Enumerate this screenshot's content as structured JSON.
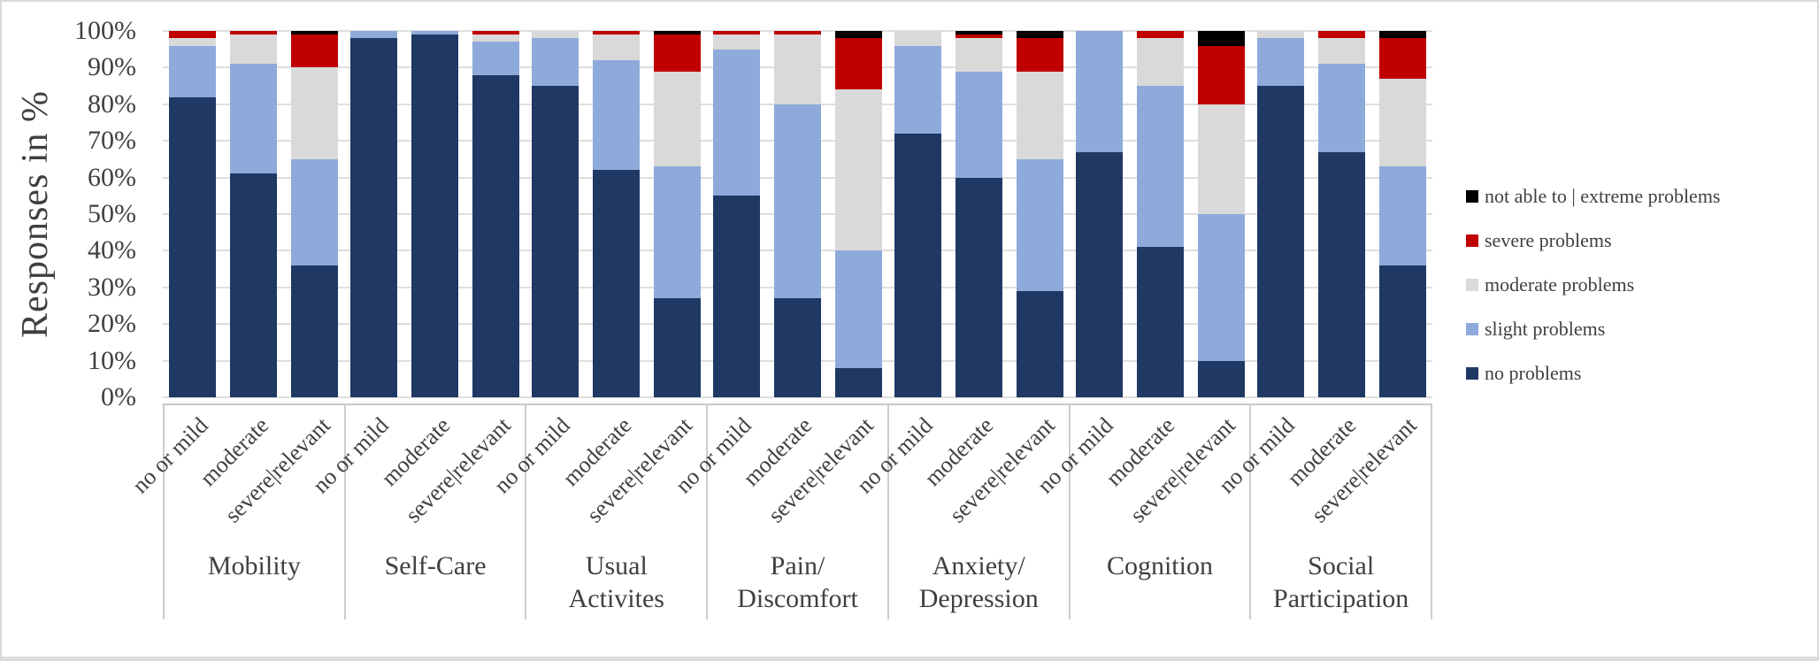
{
  "chart_data": {
    "type": "bar",
    "variant": "stacked-100-percent",
    "ylabel": "Responses in %",
    "ylim": [
      0,
      100
    ],
    "grid": "horizontal",
    "y_ticks": [
      "100%",
      "90%",
      "80%",
      "70%",
      "60%",
      "50%",
      "40%",
      "30%",
      "20%",
      "10%",
      "0%"
    ],
    "bar_categories": [
      "no or mild",
      "moderate",
      "severe|relevant"
    ],
    "series_order_bottom_to_top": [
      "no problems",
      "slight problems",
      "moderate problems",
      "severe problems",
      "not able to | extreme problems"
    ],
    "series_colors": {
      "no problems": "#1F3864",
      "slight problems": "#8EAADB",
      "moderate problems": "#D9D9D9",
      "severe problems": "#C00000",
      "not able to | extreme problems": "#000000"
    },
    "groups": [
      {
        "label_lines": [
          "Mobility"
        ],
        "bars": [
          {
            "category": "no or mild",
            "values": [
              82,
              14,
              2,
              2,
              0
            ]
          },
          {
            "category": "moderate",
            "values": [
              61,
              30,
              8,
              1,
              0
            ]
          },
          {
            "category": "severe|relevant",
            "values": [
              36,
              29,
              25,
              9,
              1
            ]
          }
        ]
      },
      {
        "label_lines": [
          "Self-Care"
        ],
        "bars": [
          {
            "category": "no or mild",
            "values": [
              98,
              2,
              0,
              0,
              0
            ]
          },
          {
            "category": "moderate",
            "values": [
              99,
              1,
              0,
              0,
              0
            ]
          },
          {
            "category": "severe|relevant",
            "values": [
              88,
              9,
              2,
              1,
              0
            ]
          }
        ]
      },
      {
        "label_lines": [
          "Usual",
          "Activites"
        ],
        "bars": [
          {
            "category": "no or mild",
            "values": [
              85,
              13,
              2,
              0,
              0
            ]
          },
          {
            "category": "moderate",
            "values": [
              62,
              30,
              7,
              1,
              0
            ]
          },
          {
            "category": "severe|relevant",
            "values": [
              27,
              36,
              26,
              10,
              1
            ]
          }
        ]
      },
      {
        "label_lines": [
          "Pain/",
          "Discomfort"
        ],
        "bars": [
          {
            "category": "no or mild",
            "values": [
              55,
              40,
              4,
              1,
              0
            ]
          },
          {
            "category": "moderate",
            "values": [
              27,
              53,
              19,
              1,
              0
            ]
          },
          {
            "category": "severe|relevant",
            "values": [
              8,
              32,
              44,
              14,
              2
            ]
          }
        ]
      },
      {
        "label_lines": [
          "Anxiety/",
          "Depression"
        ],
        "bars": [
          {
            "category": "no or mild",
            "values": [
              72,
              24,
              4,
              0,
              0
            ]
          },
          {
            "category": "moderate",
            "values": [
              60,
              29,
              9,
              1,
              1
            ]
          },
          {
            "category": "severe|relevant",
            "values": [
              29,
              36,
              24,
              9,
              2
            ]
          }
        ]
      },
      {
        "label_lines": [
          "Cognition"
        ],
        "bars": [
          {
            "category": "no or mild",
            "values": [
              67,
              33,
              0,
              0,
              0
            ]
          },
          {
            "category": "moderate",
            "values": [
              41,
              44,
              13,
              2,
              0
            ]
          },
          {
            "category": "severe|relevant",
            "values": [
              10,
              40,
              30,
              16,
              4
            ]
          }
        ]
      },
      {
        "label_lines": [
          "Social",
          "Participation"
        ],
        "bars": [
          {
            "category": "no or mild",
            "values": [
              85,
              13,
              2,
              0,
              0
            ]
          },
          {
            "category": "moderate",
            "values": [
              67,
              24,
              7,
              2,
              0
            ]
          },
          {
            "category": "severe|relevant",
            "values": [
              36,
              27,
              24,
              11,
              2
            ]
          }
        ]
      }
    ],
    "legend": {
      "position": "right",
      "items_top_to_bottom": [
        {
          "label": "not able to | extreme problems",
          "color": "#000000"
        },
        {
          "label": "severe problems",
          "color": "#C00000"
        },
        {
          "label": "moderate problems",
          "color": "#D9D9D9"
        },
        {
          "label": "slight problems",
          "color": "#8EAADB"
        },
        {
          "label": "no problems",
          "color": "#1F3864"
        }
      ]
    },
    "colors_misc": {
      "gridline": "#DEDEDE",
      "axis_text": "#404040",
      "figure_border": "#D9D9D9"
    }
  }
}
